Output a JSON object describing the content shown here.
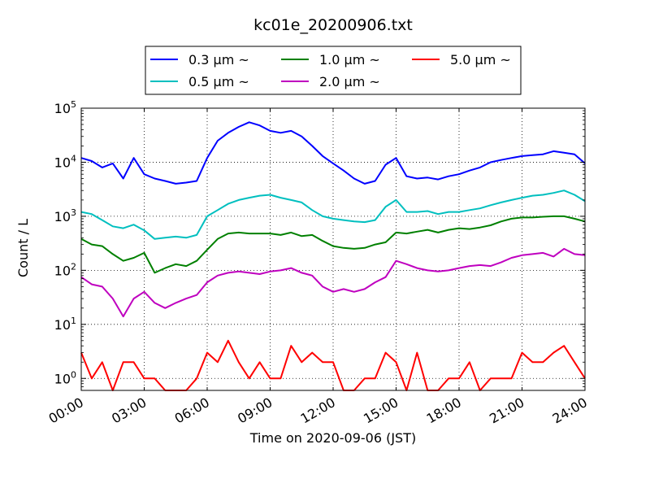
{
  "chart_data": {
    "type": "line",
    "title": "kc01e_20200906.txt",
    "xlabel": "Time on 2020-09-06 (JST)",
    "ylabel": "Count / L",
    "yscale": "log",
    "xlim_hours": [
      0,
      24
    ],
    "ylim": [
      0.6,
      100000
    ],
    "grid": true,
    "legend_position": "top-center, outside plot",
    "x_tick_labels": [
      "00:00",
      "03:00",
      "06:00",
      "09:00",
      "12:00",
      "15:00",
      "18:00",
      "21:00",
      "24:00"
    ],
    "y_ticks": [
      {
        "value": 1,
        "base": "10",
        "exp": "0"
      },
      {
        "value": 10,
        "base": "10",
        "exp": "1"
      },
      {
        "value": 100,
        "base": "10",
        "exp": "2"
      },
      {
        "value": 1000,
        "base": "10",
        "exp": "3"
      },
      {
        "value": 10000,
        "base": "10",
        "exp": "4"
      },
      {
        "value": 100000,
        "base": "10",
        "exp": "5"
      }
    ],
    "series": [
      {
        "name": "0.3 μm ~",
        "color": "#0000ff",
        "x": [
          0,
          0.5,
          1,
          1.5,
          2,
          2.5,
          3,
          3.5,
          4,
          4.5,
          5,
          5.5,
          6,
          6.5,
          7,
          7.5,
          8,
          8.5,
          9,
          9.5,
          10,
          10.5,
          11,
          11.5,
          12,
          12.5,
          13,
          13.5,
          14,
          14.5,
          15,
          15.5,
          16,
          16.5,
          17,
          17.5,
          18,
          18.5,
          19,
          19.5,
          20,
          20.5,
          21,
          21.5,
          22,
          22.5,
          23,
          23.5,
          24
        ],
        "values": [
          12000,
          10500,
          8000,
          9500,
          5000,
          12000,
          6000,
          5000,
          4500,
          4000,
          4200,
          4500,
          12000,
          25000,
          35000,
          45000,
          55000,
          48000,
          38000,
          35000,
          38000,
          30000,
          20000,
          13000,
          9500,
          7000,
          5000,
          4000,
          4500,
          9000,
          12000,
          5500,
          5000,
          5200,
          4800,
          5500,
          6000,
          7000,
          8000,
          10000,
          11000,
          12000,
          13000,
          13500,
          14000,
          16000,
          15000,
          14000,
          9500
        ]
      },
      {
        "name": "0.5 μm ~",
        "color": "#00bfbf",
        "x": [
          0,
          0.5,
          1,
          1.5,
          2,
          2.5,
          3,
          3.5,
          4,
          4.5,
          5,
          5.5,
          6,
          6.5,
          7,
          7.5,
          8,
          8.5,
          9,
          9.5,
          10,
          10.5,
          11,
          11.5,
          12,
          12.5,
          13,
          13.5,
          14,
          14.5,
          15,
          15.5,
          16,
          16.5,
          17,
          17.5,
          18,
          18.5,
          19,
          19.5,
          20,
          20.5,
          21,
          21.5,
          22,
          22.5,
          23,
          23.5,
          24
        ],
        "values": [
          1200,
          1100,
          850,
          650,
          600,
          700,
          550,
          380,
          400,
          420,
          400,
          450,
          1000,
          1300,
          1700,
          2000,
          2200,
          2400,
          2500,
          2200,
          2000,
          1800,
          1300,
          1000,
          900,
          850,
          800,
          780,
          850,
          1500,
          2000,
          1200,
          1200,
          1250,
          1100,
          1200,
          1200,
          1300,
          1400,
          1600,
          1800,
          2000,
          2200,
          2400,
          2500,
          2700,
          3000,
          2500,
          1900
        ]
      },
      {
        "name": "1.0 μm ~",
        "color": "#008000",
        "x": [
          0,
          0.5,
          1,
          1.5,
          2,
          2.5,
          3,
          3.5,
          4,
          4.5,
          5,
          5.5,
          6,
          6.5,
          7,
          7.5,
          8,
          8.5,
          9,
          9.5,
          10,
          10.5,
          11,
          11.5,
          12,
          12.5,
          13,
          13.5,
          14,
          14.5,
          15,
          15.5,
          16,
          16.5,
          17,
          17.5,
          18,
          18.5,
          19,
          19.5,
          20,
          20.5,
          21,
          21.5,
          22,
          22.5,
          23,
          23.5,
          24
        ],
        "values": [
          380,
          300,
          280,
          200,
          150,
          170,
          210,
          90,
          110,
          130,
          120,
          150,
          240,
          380,
          480,
          500,
          480,
          480,
          480,
          450,
          500,
          430,
          450,
          350,
          280,
          260,
          250,
          260,
          300,
          330,
          500,
          480,
          520,
          560,
          500,
          560,
          600,
          580,
          620,
          680,
          800,
          900,
          950,
          950,
          980,
          1000,
          1000,
          900,
          800
        ]
      },
      {
        "name": "2.0 μm ~",
        "color": "#bf00bf",
        "x": [
          0,
          0.5,
          1,
          1.5,
          2,
          2.5,
          3,
          3.5,
          4,
          4.5,
          5,
          5.5,
          6,
          6.5,
          7,
          7.5,
          8,
          8.5,
          9,
          9.5,
          10,
          10.5,
          11,
          11.5,
          12,
          12.5,
          13,
          13.5,
          14,
          14.5,
          15,
          15.5,
          16,
          16.5,
          17,
          17.5,
          18,
          18.5,
          19,
          19.5,
          20,
          20.5,
          21,
          21.5,
          22,
          22.5,
          23,
          23.5,
          24
        ],
        "values": [
          75,
          55,
          50,
          30,
          14,
          30,
          40,
          25,
          20,
          25,
          30,
          35,
          60,
          80,
          90,
          95,
          90,
          85,
          95,
          100,
          110,
          90,
          80,
          50,
          40,
          45,
          40,
          45,
          60,
          75,
          150,
          130,
          110,
          100,
          95,
          100,
          110,
          120,
          125,
          120,
          140,
          170,
          190,
          200,
          210,
          180,
          250,
          200,
          190
        ]
      },
      {
        "name": "5.0 μm ~",
        "color": "#ff0000",
        "x": [
          0,
          0.5,
          1,
          1.5,
          2,
          2.5,
          3,
          3.5,
          4,
          4.5,
          5,
          5.5,
          6,
          6.5,
          7,
          7.5,
          8,
          8.5,
          9,
          9.5,
          10,
          10.5,
          11,
          11.5,
          12,
          12.5,
          13,
          13.5,
          14,
          14.5,
          15,
          15.5,
          16,
          16.5,
          17,
          17.5,
          18,
          18.5,
          19,
          19.5,
          20,
          20.5,
          21,
          21.5,
          22,
          22.5,
          23,
          23.5,
          24
        ],
        "values": [
          3,
          1,
          2,
          0.5,
          2,
          2,
          1,
          1,
          0.5,
          0.5,
          0.5,
          1,
          3,
          2,
          5,
          2,
          1,
          2,
          1,
          1,
          4,
          2,
          3,
          2,
          2,
          0.5,
          0.5,
          1,
          1,
          3,
          2,
          0.5,
          3,
          0.5,
          0.5,
          1,
          1,
          2,
          0.5,
          1,
          1,
          1,
          3,
          2,
          2,
          3,
          4,
          2,
          1
        ]
      }
    ]
  }
}
